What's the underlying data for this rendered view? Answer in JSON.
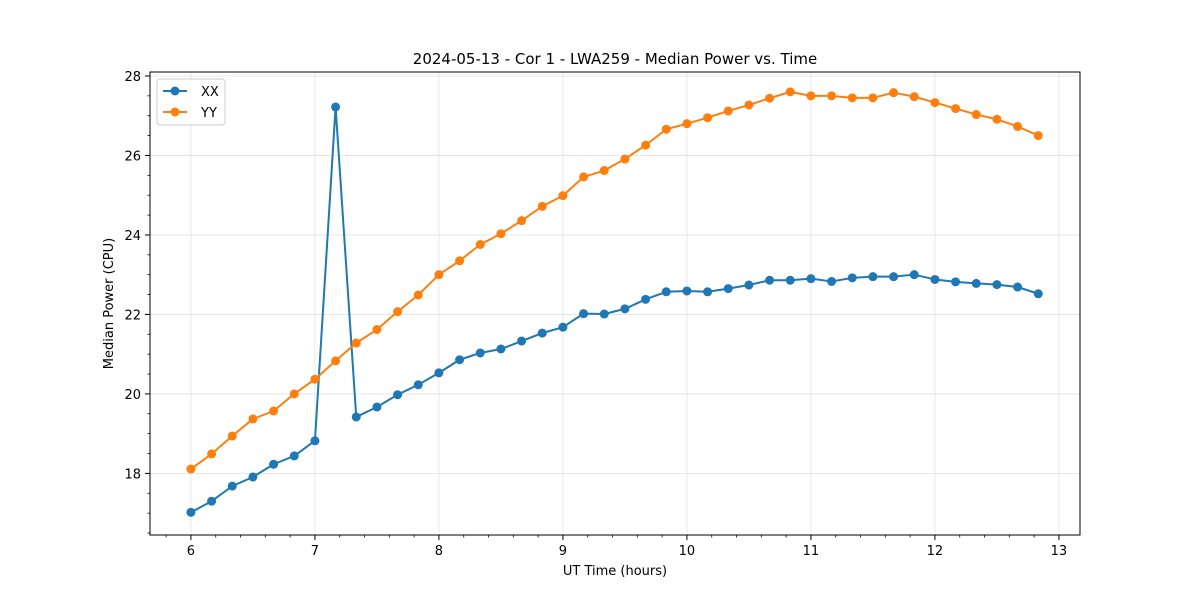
{
  "chart_data": {
    "type": "line",
    "title": "2024-05-13 - Cor 1 - LWA259 - Median Power vs. Time",
    "xlabel": "UT Time (hours)",
    "ylabel": "Median Power (CPU)",
    "xlim": [
      5.67,
      13.17
    ],
    "ylim": [
      16.45,
      28.1
    ],
    "xticks": [
      6,
      7,
      8,
      9,
      10,
      11,
      12,
      13
    ],
    "yticks": [
      18,
      20,
      22,
      24,
      26,
      28
    ],
    "grid": true,
    "legend_position": "upper-left",
    "x": [
      6.0,
      6.1667,
      6.3333,
      6.5,
      6.6667,
      6.8333,
      7.0,
      7.1667,
      7.3333,
      7.5,
      7.6667,
      7.8333,
      8.0,
      8.1667,
      8.3333,
      8.5,
      8.6667,
      8.8333,
      9.0,
      9.1667,
      9.3333,
      9.5,
      9.6667,
      9.8333,
      10.0,
      10.1667,
      10.3333,
      10.5,
      10.6667,
      10.8333,
      11.0,
      11.1667,
      11.3333,
      11.5,
      11.6667,
      11.8333,
      12.0,
      12.1667,
      12.3333,
      12.5,
      12.6667,
      12.8333
    ],
    "series": [
      {
        "name": "XX",
        "color": "#1f77b4",
        "values": [
          17.02,
          17.3,
          17.68,
          17.91,
          18.23,
          18.44,
          18.82,
          27.22,
          19.42,
          19.67,
          19.98,
          20.23,
          20.53,
          20.86,
          21.03,
          21.13,
          21.33,
          21.53,
          21.68,
          22.02,
          22.01,
          22.14,
          22.38,
          22.57,
          22.59,
          22.57,
          22.65,
          22.74,
          22.86,
          22.86,
          22.9,
          22.83,
          22.92,
          22.95,
          22.95,
          23.0,
          22.88,
          22.82,
          22.78,
          22.75,
          22.69,
          22.52
        ]
      },
      {
        "name": "YY",
        "color": "#ff7f0e",
        "values": [
          18.11,
          18.49,
          18.94,
          19.37,
          19.57,
          20.0,
          20.37,
          20.83,
          21.28,
          21.62,
          22.07,
          22.49,
          23.0,
          23.35,
          23.76,
          24.03,
          24.36,
          24.72,
          24.99,
          25.46,
          25.62,
          25.91,
          26.26,
          26.66,
          26.8,
          26.95,
          27.12,
          27.27,
          27.44,
          27.6,
          27.5,
          27.5,
          27.45,
          27.45,
          27.58,
          27.48,
          27.33,
          27.18,
          27.03,
          26.91,
          26.73,
          26.5
        ]
      }
    ]
  }
}
